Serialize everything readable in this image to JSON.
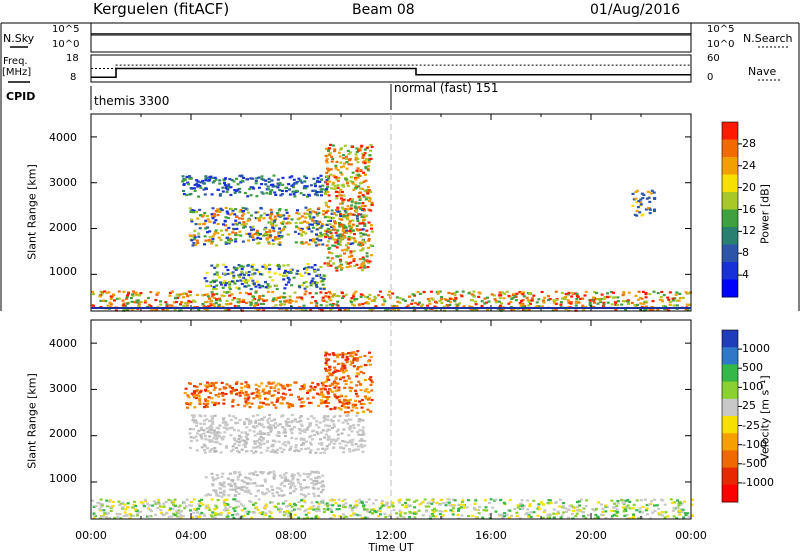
{
  "header": {
    "title": "Kerguelen (fitACF)",
    "beam": "Beam 08",
    "date": "01/Aug/2016"
  },
  "status_panels": {
    "nsky_label": "N.Sky",
    "nsky_ticks": [
      "10^5",
      "10^0"
    ],
    "nsearch_label": "N.Search",
    "nsearch_ticks": [
      "10^5",
      "10^0"
    ],
    "freq_label": "Freq.",
    "freq_unit": "[MHz]",
    "freq_ticks": [
      "18",
      "8"
    ],
    "nave_label": "Nave",
    "nave_ticks": [
      "60",
      "0"
    ],
    "cpid_label": "CPID",
    "cpid_modes": [
      {
        "name": "themis 3300",
        "start_h": 0
      },
      {
        "name": "normal (fast) 151",
        "start_h": 12
      }
    ],
    "freq_data": {
      "t": [
        0,
        1,
        1,
        13,
        13,
        24
      ],
      "v": [
        9.5,
        9.5,
        13,
        13,
        10.5,
        10.5
      ]
    },
    "nave_data": {
      "t": [
        0,
        1,
        1,
        13,
        24
      ],
      "v": [
        30,
        30,
        38,
        38,
        38
      ]
    }
  },
  "chart_data": [
    {
      "type": "heatmap",
      "panel": "power",
      "ylabel": "Slant Range [km]",
      "y_ticks": [
        1000,
        2000,
        3000,
        4000
      ],
      "ylim": [
        200,
        4500
      ],
      "xlim": [
        0,
        24
      ],
      "colorbar_label": "Power [dB]",
      "colorbar_ticks": [
        "28",
        "24",
        "20",
        "16",
        "12",
        "8",
        "4"
      ],
      "colorbar_colors": [
        "#ff1a00",
        "#f36a00",
        "#f2a000",
        "#f6e000",
        "#a8c828",
        "#3fa040",
        "#2a8070",
        "#2c55a8",
        "#1830d8",
        "#0000ff"
      ],
      "echo_regions": [
        {
          "t0": 3.6,
          "t1": 9.4,
          "r0": 2720,
          "r1": 3180,
          "dominant": "blue/green"
        },
        {
          "t0": 3.9,
          "t1": 10.9,
          "r0": 1650,
          "r1": 2480,
          "dominant": "blue/green/orange"
        },
        {
          "t0": 4.5,
          "t1": 9.3,
          "r0": 700,
          "r1": 1250,
          "dominant": "blue/green/yellow"
        },
        {
          "t0": 9.3,
          "t1": 11.2,
          "r0": 1100,
          "r1": 3850,
          "dominant": "green/orange/red"
        },
        {
          "t0": 0.0,
          "t1": 24.0,
          "r0": 230,
          "r1": 650,
          "dominant": "green/orange/red"
        },
        {
          "t0": 21.6,
          "t1": 22.5,
          "r0": 2300,
          "r1": 2850,
          "dominant": "yellow/orange"
        }
      ]
    },
    {
      "type": "heatmap",
      "panel": "velocity",
      "ylabel": "Slant Range [km]",
      "y_ticks": [
        1000,
        2000,
        3000,
        4000
      ],
      "ylim": [
        200,
        4500
      ],
      "xlim": [
        0,
        24
      ],
      "x_ticks": [
        "00:00",
        "04:00",
        "08:00",
        "12:00",
        "16:00",
        "20:00",
        "00:00"
      ],
      "xlabel": "Time UT",
      "colorbar_label": "Velocity [m s⁻¹]",
      "colorbar_ticks": [
        "1000",
        "500",
        "100",
        "25",
        "-25",
        "-100",
        "-500",
        "-1000"
      ],
      "colorbar_colors": [
        "#1f3db8",
        "#2f78c8",
        "#36b848",
        "#8ad030",
        "#c8c8c8",
        "#f7e000",
        "#f6a000",
        "#f06800",
        "#e82800",
        "#ff0000"
      ],
      "echo_regions": [
        {
          "t0": 3.6,
          "t1": 9.4,
          "r0": 2620,
          "r1": 3180,
          "dominant": "orange"
        },
        {
          "t0": 3.9,
          "t1": 10.9,
          "r0": 1650,
          "r1": 2480,
          "dominant": "grey"
        },
        {
          "t0": 4.5,
          "t1": 9.3,
          "r0": 700,
          "r1": 1250,
          "dominant": "grey"
        },
        {
          "t0": 9.3,
          "t1": 11.2,
          "r0": 2500,
          "r1": 3850,
          "dominant": "orange/red"
        },
        {
          "t0": 0.0,
          "t1": 24.0,
          "r0": 230,
          "r1": 650,
          "dominant": "grey/green"
        }
      ]
    }
  ]
}
